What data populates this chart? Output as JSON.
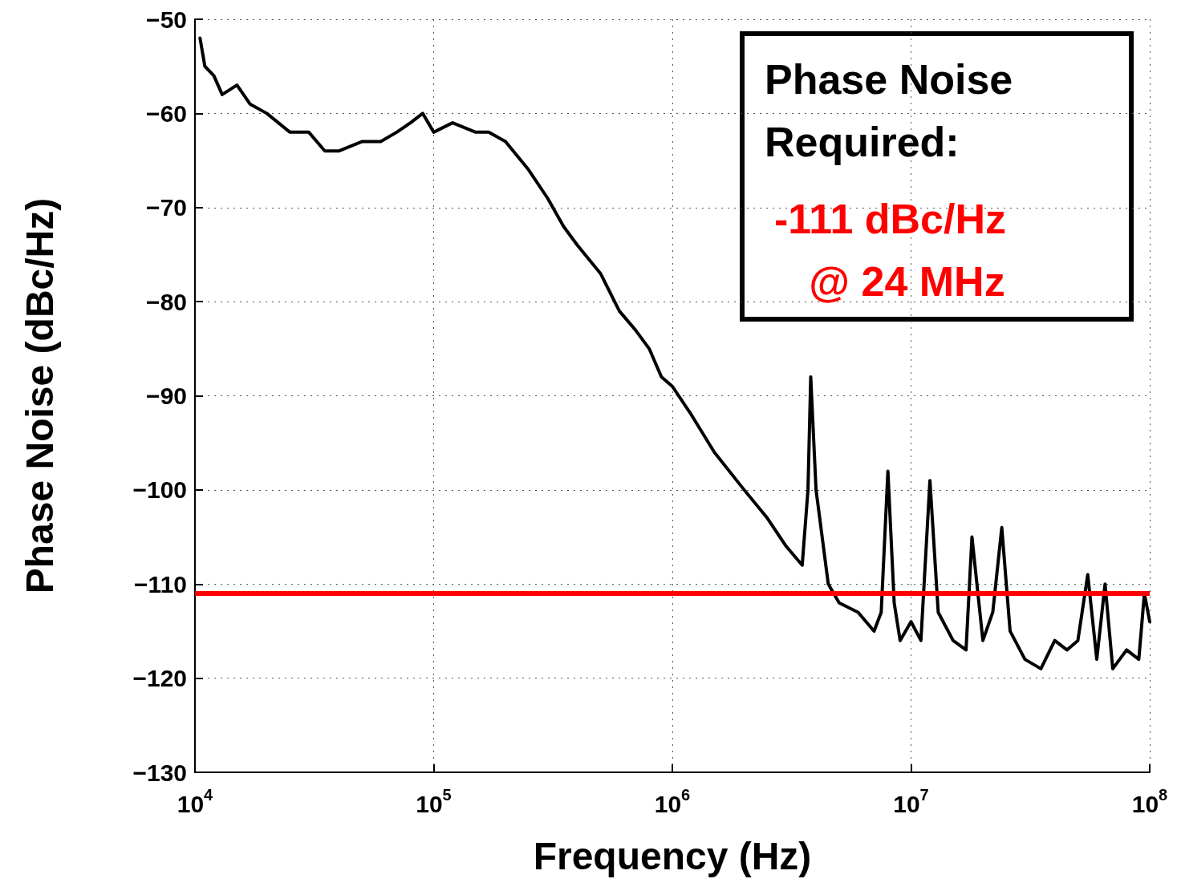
{
  "chart_data": {
    "type": "line",
    "xlabel": "Frequency (Hz)",
    "ylabel": "Phase Noise (dBc/Hz)",
    "log": "x",
    "grid": true,
    "marker": "none",
    "line_style": "solid",
    "xlim": [
      10000,
      100000000
    ],
    "xticks": [
      {
        "value": 10000,
        "label": "10$^{4}$"
      },
      {
        "value": 100000,
        "label": "10$^{5}$"
      },
      {
        "value": 1000000,
        "label": "10$^{6}$"
      },
      {
        "value": 10000000,
        "label": "10$^{7}$"
      },
      {
        "value": 100000000,
        "label": "10$^{8}$"
      }
    ],
    "ylim": [
      -130,
      -50
    ],
    "yticks": [
      -130,
      -120,
      -110,
      -100,
      -90,
      -80,
      -70,
      -60,
      -50
    ],
    "series": [
      {
        "color": "#000000",
        "x": [
          10500,
          11000,
          12000,
          13000,
          15000,
          17000,
          20000,
          25000,
          30000,
          35000,
          40000,
          50000,
          60000,
          70000,
          80000,
          90000,
          100000,
          120000,
          150000,
          170000,
          200000,
          250000,
          300000,
          350000,
          400000,
          500000,
          600000,
          700000,
          800000,
          900000,
          1000000,
          1200000,
          1500000,
          2000000,
          2500000,
          3000000,
          3500000,
          3700000,
          3800000,
          4000000,
          4500000,
          5000000,
          6000000,
          7000000,
          7500000,
          8000000,
          8500000,
          9000000,
          10000000,
          11000000,
          12000000,
          13000000,
          15000000,
          17000000,
          18000000,
          20000000,
          22000000,
          24000000,
          26000000,
          30000000,
          35000000,
          40000000,
          45000000,
          50000000,
          55000000,
          60000000,
          65000000,
          70000000,
          80000000,
          90000000,
          95000000,
          100000000
        ],
        "values": [
          -52,
          -55,
          -56,
          -58,
          -57,
          -59,
          -60,
          -62,
          -62,
          -64,
          -64,
          -63,
          -63,
          -62,
          -61,
          -60,
          -62,
          -61,
          -62,
          -62,
          -63,
          -66,
          -69,
          -72,
          -74,
          -77,
          -81,
          -83,
          -85,
          -88,
          -89,
          -92,
          -96,
          -100,
          -103,
          -106,
          -108,
          -100,
          -88,
          -100,
          -110,
          -112,
          -113,
          -115,
          -113,
          -98,
          -112,
          -116,
          -114,
          -116,
          -99,
          -113,
          -116,
          -117,
          -105,
          -116,
          -113,
          -104,
          -115,
          -118,
          -119,
          -116,
          -117,
          -116,
          -109,
          -118,
          -110,
          -119,
          -117,
          -118,
          -111,
          -114
        ]
      }
    ],
    "ref_lines": [
      {
        "axis": "y",
        "value": -111,
        "color": "#ff0000"
      }
    ],
    "annotations": [
      "Phase Noise\nRequired:",
      "-111 dBc/Hz\n   @ 24 MHz"
    ]
  }
}
